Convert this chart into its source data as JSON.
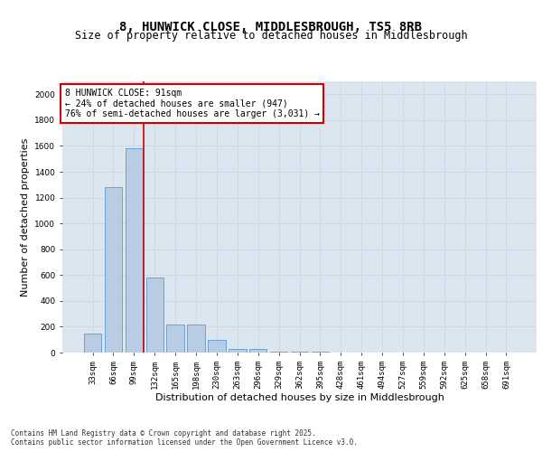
{
  "title_line1": "8, HUNWICK CLOSE, MIDDLESBROUGH, TS5 8RB",
  "title_line2": "Size of property relative to detached houses in Middlesbrough",
  "xlabel": "Distribution of detached houses by size in Middlesbrough",
  "ylabel": "Number of detached properties",
  "categories": [
    "33sqm",
    "66sqm",
    "99sqm",
    "132sqm",
    "165sqm",
    "198sqm",
    "230sqm",
    "263sqm",
    "296sqm",
    "329sqm",
    "362sqm",
    "395sqm",
    "428sqm",
    "461sqm",
    "494sqm",
    "527sqm",
    "559sqm",
    "592sqm",
    "625sqm",
    "658sqm",
    "691sqm"
  ],
  "values": [
    150,
    1280,
    1580,
    580,
    215,
    215,
    95,
    30,
    30,
    10,
    10,
    5,
    0,
    0,
    0,
    0,
    0,
    0,
    0,
    0,
    0
  ],
  "bar_color": "#b8cce4",
  "bar_edge_color": "#5b9bd5",
  "grid_color": "#d0d8e8",
  "bg_color": "#dce6f1",
  "vline_color": "#cc0000",
  "vline_pos": 2.45,
  "annotation_text": "8 HUNWICK CLOSE: 91sqm\n← 24% of detached houses are smaller (947)\n76% of semi-detached houses are larger (3,031) →",
  "annotation_box_color": "#ffffff",
  "annotation_box_edge": "#cc0000",
  "footnote1": "Contains HM Land Registry data © Crown copyright and database right 2025.",
  "footnote2": "Contains public sector information licensed under the Open Government Licence v3.0.",
  "ylim": [
    0,
    2100
  ],
  "yticks": [
    0,
    200,
    400,
    600,
    800,
    1000,
    1200,
    1400,
    1600,
    1800,
    2000
  ],
  "title_fontsize": 10,
  "subtitle_fontsize": 8.5,
  "ylabel_fontsize": 8,
  "xlabel_fontsize": 8,
  "tick_fontsize": 6.5,
  "annotation_fontsize": 7,
  "footnote_fontsize": 5.5
}
